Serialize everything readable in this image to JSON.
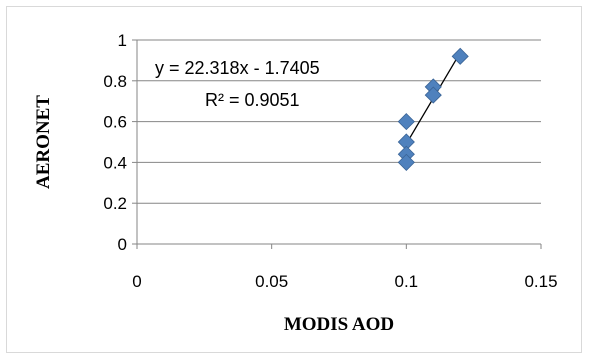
{
  "chart_data": {
    "type": "scatter",
    "title": "",
    "xlabel": "MODIS AOD",
    "ylabel": "AERONET",
    "xlim": [
      0,
      0.15
    ],
    "ylim": [
      0,
      1
    ],
    "x_ticks": [
      0,
      0.05,
      0.1,
      0.15
    ],
    "y_ticks": [
      0,
      0.2,
      0.4,
      0.6,
      0.8,
      1
    ],
    "x_tick_labels": [
      "0",
      "0.05",
      "0.1",
      "0.15"
    ],
    "y_tick_labels": [
      "0",
      "0.2",
      "0.4",
      "0.6",
      "0.8",
      "1"
    ],
    "grid": "horizontal",
    "series": [
      {
        "points": [
          {
            "x": 0.1,
            "y": 0.6
          },
          {
            "x": 0.1,
            "y": 0.5
          },
          {
            "x": 0.1,
            "y": 0.44
          },
          {
            "x": 0.1,
            "y": 0.4
          },
          {
            "x": 0.11,
            "y": 0.77
          },
          {
            "x": 0.11,
            "y": 0.73
          },
          {
            "x": 0.12,
            "y": 0.92
          }
        ],
        "marker": "diamond",
        "color": "#4f81bd"
      }
    ],
    "trendline": {
      "slope": 22.318,
      "intercept": -1.7405,
      "x_range": [
        0.1,
        0.12
      ],
      "color": "#000000",
      "equation_label": "y = 22.318x - 1.7405",
      "r2_label": "R² = 0.9051"
    }
  }
}
